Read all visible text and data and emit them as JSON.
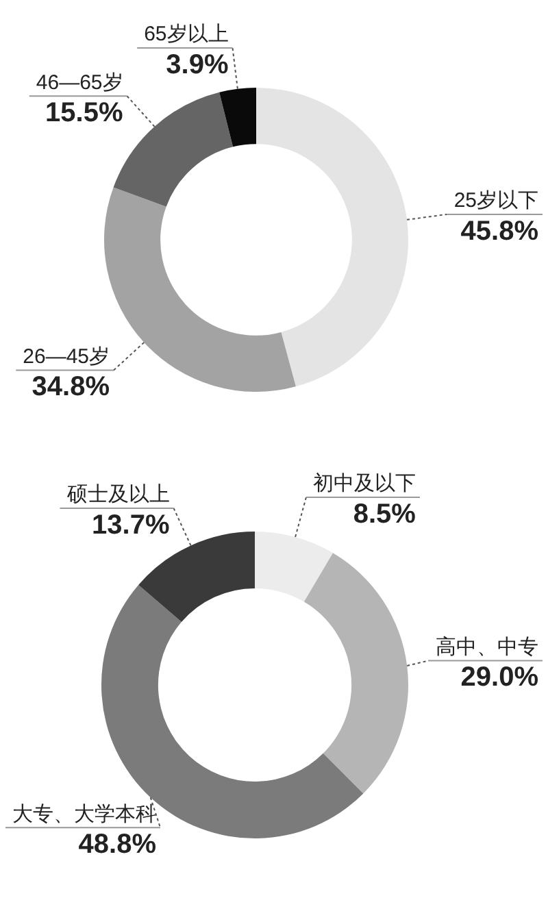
{
  "chart_data": [
    {
      "type": "donut",
      "categories": [
        "25岁以下",
        "26—45岁",
        "46—65岁",
        "65岁以上"
      ],
      "values": [
        45.8,
        34.8,
        15.5,
        3.9
      ],
      "colors": [
        "#e4e4e4",
        "#a3a3a3",
        "#656565",
        "#0a0a0a"
      ],
      "value_labels": [
        "45.8%",
        "34.8%",
        "15.5%",
        "3.9%"
      ]
    },
    {
      "type": "donut",
      "categories": [
        "初中及以下",
        "高中、中专",
        "大专、大学本科",
        "硕士及以上"
      ],
      "values": [
        8.5,
        29.0,
        48.8,
        13.7
      ],
      "colors": [
        "#ececec",
        "#b5b5b5",
        "#7b7b7b",
        "#3a3a3a"
      ],
      "value_labels": [
        "8.5%",
        "29.0%",
        "48.8%",
        "13.7%"
      ]
    }
  ]
}
